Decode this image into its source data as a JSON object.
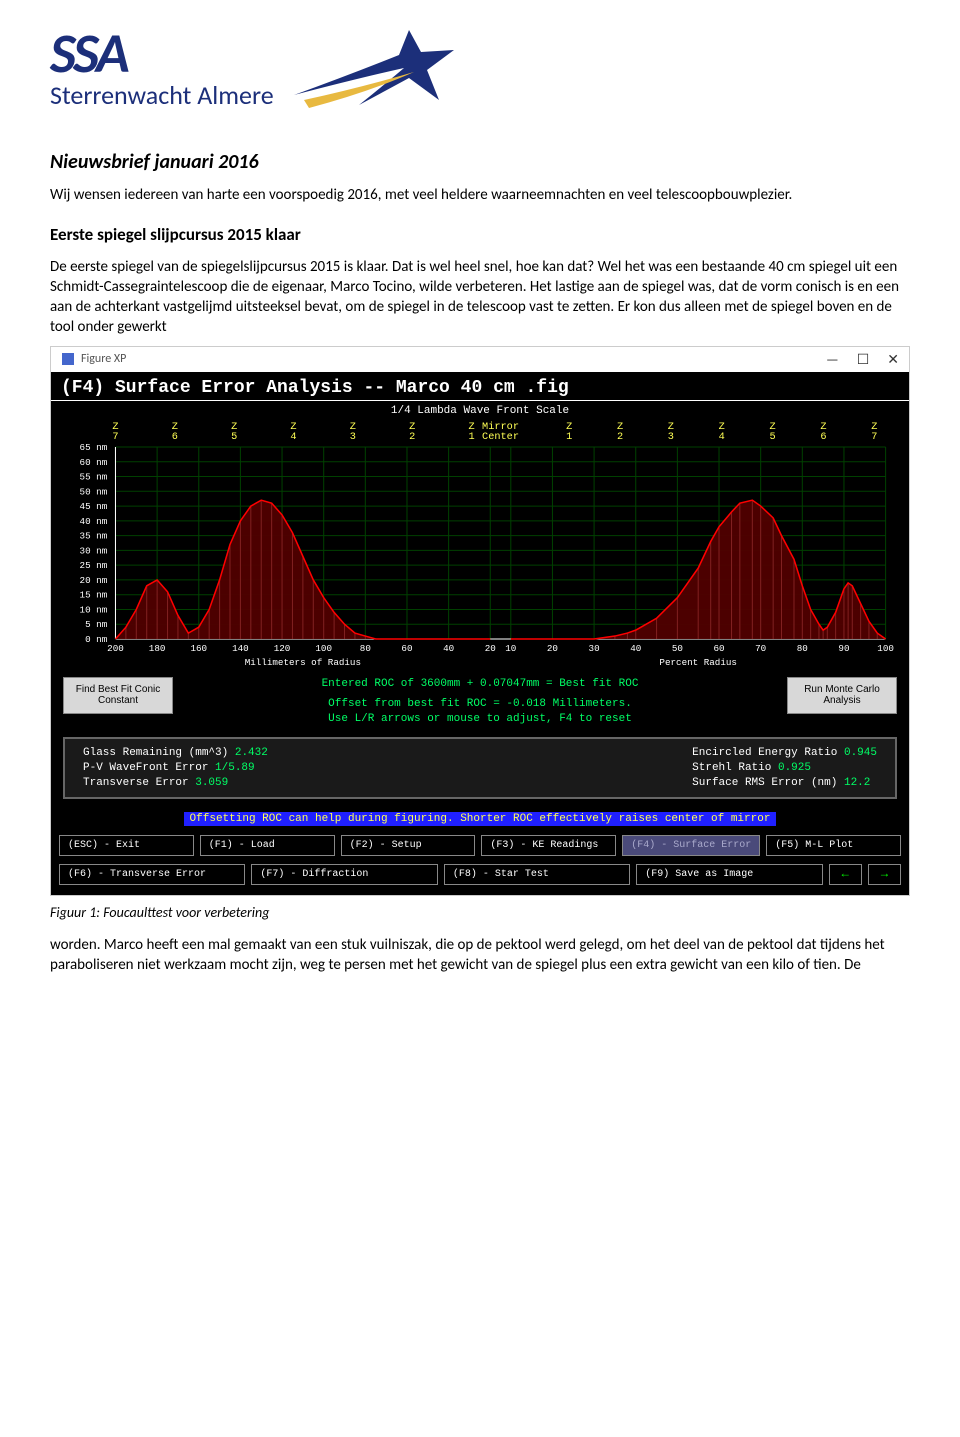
{
  "logo": {
    "acronym": "SSA",
    "full": "Sterrenwacht Almere",
    "text_color": "#1c2f7a",
    "star_color_blue": "#1c2f7a",
    "star_color_gold": "#e8b940"
  },
  "newsletter": {
    "title": "Nieuwsbrief januari 2016",
    "intro": "Wij wensen iedereen van harte een voorspoedig 2016, met veel heldere waarneemnachten en veel telescoopbouwplezier."
  },
  "section": {
    "title": "Eerste spiegel slijpcursus 2015 klaar",
    "para1": "De eerste spiegel van de spiegelslijpcursus 2015 is klaar. Dat is wel heel snel, hoe kan dat? Wel het was een bestaande 40 cm spiegel uit een Schmidt-Cassegraintelescoop die de eigenaar, Marco Tocino, wilde verbeteren. Het lastige aan de spiegel was, dat de vorm conisch is en een aan de achterkant vastgelijmd uitsteeksel bevat, om de spiegel in de telescoop vast te zetten. Er kon dus alleen met de spiegel boven en de tool onder gewerkt",
    "caption": "Figuur 1: Foucaulttest voor verbetering",
    "para2": "worden. Marco heeft een mal gemaakt van een stuk vuilniszak, die op de pektool werd gelegd, om het deel van de pektool dat tijdens het paraboliseren niet werkzaam mocht zijn, weg te persen met het gewicht van de spiegel plus een extra gewicht van een kilo of tien. De"
  },
  "figxp": {
    "window_title": "Figure XP",
    "header": "(F4) Surface Error Analysis -- Marco 40 cm .fig",
    "subtitle": "1/4 Lambda Wave Front Scale",
    "bg_color": "#000000",
    "chart": {
      "ylabel_color": "#ffff55",
      "top_labels_left": [
        "Z\n7",
        "Z\n6",
        "Z\n5",
        "Z\n4",
        "Z\n3",
        "Z\n2",
        "Z\n1"
      ],
      "top_center": "Mirror\nCenter",
      "top_labels_right": [
        "Z\n1",
        "Z\n2",
        "Z\n3",
        "Z\n4",
        "Z\n5",
        "Z\n6",
        "Z\n7"
      ],
      "y_ticks": [
        65,
        60,
        55,
        50,
        45,
        40,
        35,
        30,
        25,
        20,
        15,
        10,
        5,
        0
      ],
      "y_unit": "nm",
      "left_x_ticks": [
        200,
        180,
        160,
        140,
        120,
        100,
        80,
        60,
        40,
        20
      ],
      "right_x_ticks": [
        10,
        20,
        30,
        40,
        50,
        60,
        70,
        80,
        90,
        100
      ],
      "left_x_caption": "Millimeters of Radius",
      "right_x_caption": "Percent Radius",
      "curve_color": "#ff0000",
      "fill_color": "#500000",
      "hatch_color": "#802020",
      "curve_points_mm": [
        [
          200,
          0
        ],
        [
          195,
          4
        ],
        [
          190,
          10
        ],
        [
          185,
          18
        ],
        [
          180,
          20
        ],
        [
          175,
          16
        ],
        [
          170,
          8
        ],
        [
          165,
          2
        ],
        [
          160,
          4
        ],
        [
          155,
          10
        ],
        [
          150,
          20
        ],
        [
          145,
          32
        ],
        [
          140,
          40
        ],
        [
          135,
          45
        ],
        [
          130,
          47
        ],
        [
          125,
          46
        ],
        [
          120,
          42
        ],
        [
          115,
          36
        ],
        [
          110,
          28
        ],
        [
          105,
          20
        ],
        [
          100,
          14
        ],
        [
          95,
          9
        ],
        [
          90,
          5
        ],
        [
          85,
          2
        ],
        [
          80,
          1
        ],
        [
          75,
          0
        ],
        [
          70,
          0
        ],
        [
          65,
          0
        ],
        [
          60,
          0
        ],
        [
          55,
          0
        ],
        [
          50,
          0
        ],
        [
          45,
          0
        ],
        [
          40,
          0
        ],
        [
          35,
          0
        ],
        [
          30,
          0
        ],
        [
          25,
          0
        ],
        [
          20,
          0
        ]
      ],
      "curve_points_pct": [
        [
          10,
          0
        ],
        [
          12,
          0
        ],
        [
          15,
          0
        ],
        [
          18,
          0
        ],
        [
          20,
          0
        ],
        [
          25,
          0
        ],
        [
          30,
          0
        ],
        [
          35,
          1
        ],
        [
          38,
          2
        ],
        [
          40,
          3
        ],
        [
          45,
          7
        ],
        [
          50,
          14
        ],
        [
          55,
          24
        ],
        [
          58,
          33
        ],
        [
          60,
          38
        ],
        [
          63,
          43
        ],
        [
          65,
          46
        ],
        [
          68,
          47
        ],
        [
          70,
          45
        ],
        [
          73,
          41
        ],
        [
          75,
          35
        ],
        [
          78,
          27
        ],
        [
          80,
          18
        ],
        [
          82,
          10
        ],
        [
          84,
          5
        ],
        [
          85,
          3
        ],
        [
          86,
          4
        ],
        [
          88,
          9
        ],
        [
          90,
          17
        ],
        [
          91,
          19
        ],
        [
          92,
          18
        ],
        [
          94,
          12
        ],
        [
          96,
          6
        ],
        [
          98,
          2
        ],
        [
          100,
          0
        ]
      ]
    },
    "mid": {
      "left_btn": "Find Best Fit Conic Constant",
      "right_btn": "Run Monte Carlo Analysis",
      "line1": "Entered ROC of 3600mm + 0.07047mm = Best fit ROC",
      "line2": "Offset from best fit ROC = -0.018 Millimeters.",
      "line3": "Use L/R arrows or mouse to adjust, F4 to reset",
      "text_color": "#00ff66"
    },
    "stats": {
      "left": [
        {
          "label": "Glass Remaining (mm^3)",
          "value": "2.432"
        },
        {
          "label": "P-V WaveFront Error",
          "value": "1/5.89"
        },
        {
          "label": "Transverse Error",
          "value": "3.059"
        }
      ],
      "right": [
        {
          "label": "Encircled Energy Ratio",
          "value": "0.945"
        },
        {
          "label": "Strehl Ratio",
          "value": "0.925"
        },
        {
          "label": "Surface RMS Error (nm)",
          "value": "12.2"
        }
      ]
    },
    "offset_note": "Offsetting ROC can help during figuring. Shorter ROC effectively raises center of mirror",
    "fn_row1": [
      {
        "label": "(ESC) - Exit",
        "active": false
      },
      {
        "label": "(F1) - Load",
        "active": false
      },
      {
        "label": "(F2) - Setup",
        "active": false
      },
      {
        "label": "(F3) - KE Readings",
        "active": false
      },
      {
        "label": "(F4) - Surface Error",
        "active": true
      },
      {
        "label": "(F5) M-L Plot",
        "active": false
      }
    ],
    "fn_row2": [
      {
        "label": "(F6) - Transverse Error",
        "active": false
      },
      {
        "label": "(F7) - Diffraction",
        "active": false
      },
      {
        "label": "(F8) - Star Test",
        "active": false
      },
      {
        "label": "(F9) Save as Image",
        "active": false
      }
    ],
    "arrows": {
      "left": "←",
      "right": "→"
    }
  }
}
